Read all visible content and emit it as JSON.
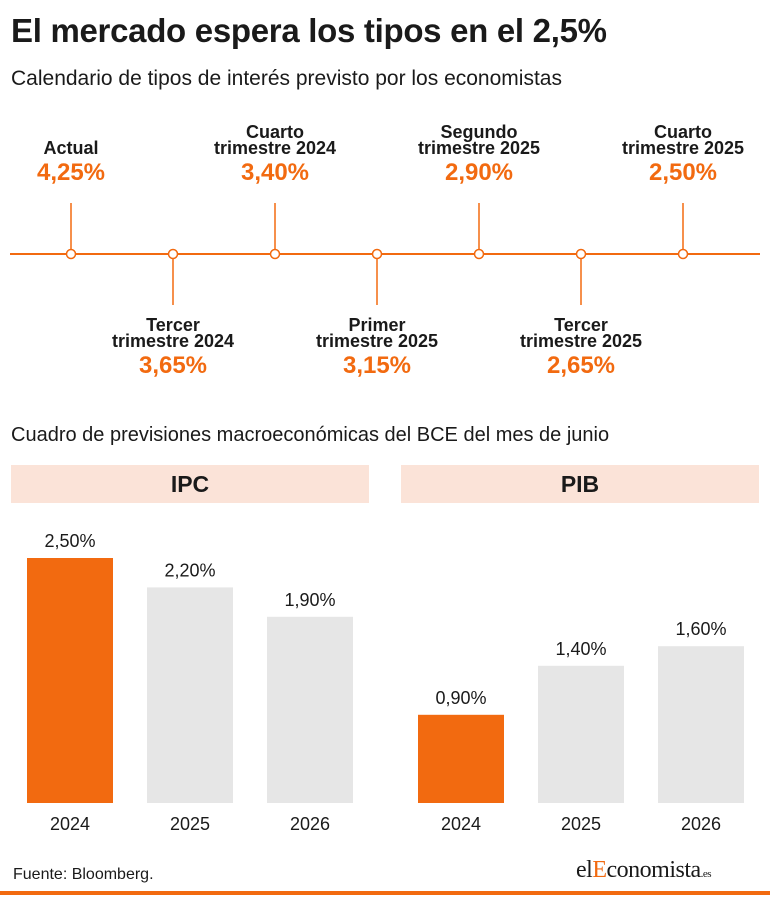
{
  "title": "El mercado espera los tipos en el 2,5%",
  "subtitle": "Calendario de tipos de interés previsto por los economistas",
  "timeline": [
    {
      "label_lines": [
        "Actual"
      ],
      "value": "4,25%",
      "position": "above"
    },
    {
      "label_lines": [
        "Tercer",
        "trimestre 2024"
      ],
      "value": "3,65%",
      "position": "below"
    },
    {
      "label_lines": [
        "Cuarto",
        "trimestre 2024"
      ],
      "value": "3,40%",
      "position": "above"
    },
    {
      "label_lines": [
        "Primer",
        "trimestre 2025"
      ],
      "value": "3,15%",
      "position": "below"
    },
    {
      "label_lines": [
        "Segundo",
        "trimestre 2025"
      ],
      "value": "2,90%",
      "position": "above"
    },
    {
      "label_lines": [
        "Tercer",
        "trimestre 2025"
      ],
      "value": "2,65%",
      "position": "below"
    },
    {
      "label_lines": [
        "Cuarto",
        "trimestre 2025"
      ],
      "value": "2,50%",
      "position": "above"
    }
  ],
  "section_title": "Cuadro de previsiones macroeconómicas del BCE del mes de junio",
  "colors": {
    "accent": "#f26a10",
    "bar_gray": "#e6e6e6",
    "header_bg": "#fbe3d8"
  },
  "chart_data": [
    {
      "type": "bar",
      "title": "IPC",
      "categories": [
        "2024",
        "2025",
        "2026"
      ],
      "values": [
        2.5,
        2.2,
        1.9
      ],
      "value_labels": [
        "2,50%",
        "2,20%",
        "1,90%"
      ],
      "highlight_index": 0,
      "ylim": [
        0,
        2.5
      ]
    },
    {
      "type": "bar",
      "title": "PIB",
      "categories": [
        "2024",
        "2025",
        "2026"
      ],
      "values": [
        0.9,
        1.4,
        1.6
      ],
      "value_labels": [
        "0,90%",
        "1,40%",
        "1,60%"
      ],
      "highlight_index": 0,
      "ylim": [
        0,
        2.5
      ]
    }
  ],
  "footer": {
    "source": "Fuente: Bloomberg.",
    "brand_prefix": "el",
    "brand_accent": "E",
    "brand_suffix": "conomista",
    "brand_tld": ".es"
  }
}
